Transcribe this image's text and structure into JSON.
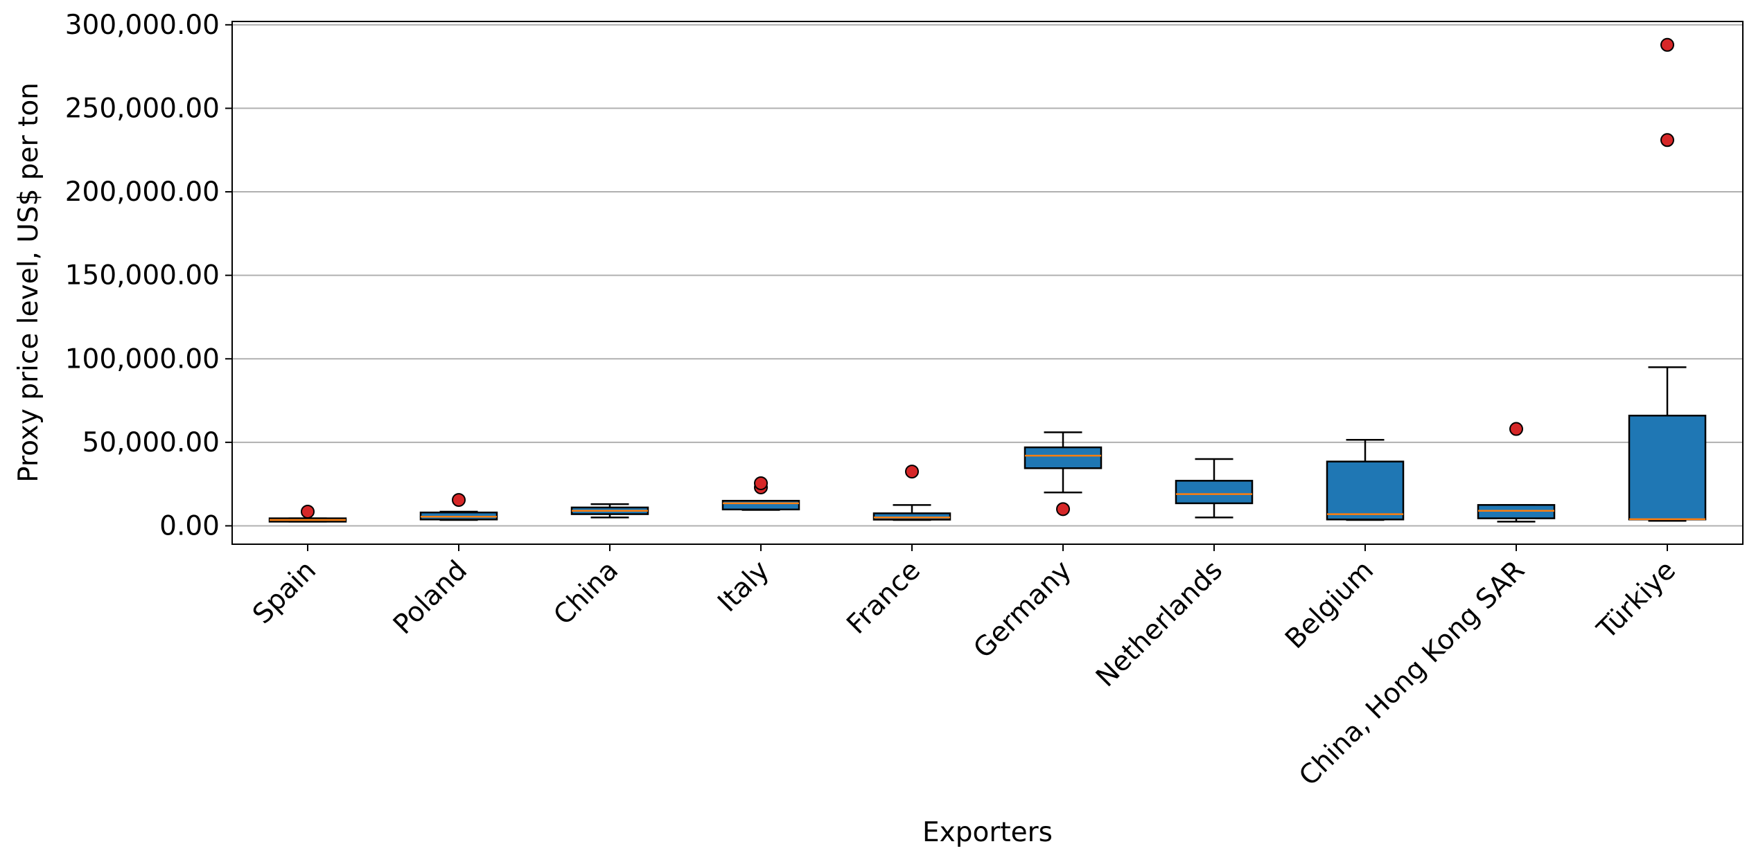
{
  "chart_data": {
    "type": "box",
    "xlabel": "Exporters",
    "ylabel": "Proxy price level, US$ per ton",
    "ylim": [
      -11000,
      302000
    ],
    "yticks": [
      0,
      50000,
      100000,
      150000,
      200000,
      250000,
      300000
    ],
    "ytick_labels": [
      "0.00",
      "50,000.00",
      "100,000.00",
      "150,000.00",
      "200,000.00",
      "250,000.00",
      "300,000.00"
    ],
    "grid": "y",
    "categories": [
      "Spain",
      "Poland",
      "China",
      "Italy",
      "France",
      "Germany",
      "Netherlands",
      "Belgium",
      "China, Hong Kong SAR",
      "Türkiye"
    ],
    "boxes": [
      {
        "whisker_low": 2500,
        "q1": 2500,
        "median": 3500,
        "q3": 4500,
        "whisker_high": 4500,
        "outliers": [
          8500
        ]
      },
      {
        "whisker_low": 3500,
        "q1": 3800,
        "median": 5500,
        "q3": 8000,
        "whisker_high": 8500,
        "outliers": [
          15500
        ]
      },
      {
        "whisker_low": 5000,
        "q1": 7000,
        "median": 9000,
        "q3": 11000,
        "whisker_high": 13000,
        "outliers": []
      },
      {
        "whisker_low": 9500,
        "q1": 9800,
        "median": 13500,
        "q3": 15000,
        "whisker_high": 15000,
        "outliers": [
          23000,
          25500
        ]
      },
      {
        "whisker_low": 3500,
        "q1": 3700,
        "median": 5000,
        "q3": 7500,
        "whisker_high": 12500,
        "outliers": [
          32500
        ]
      },
      {
        "whisker_low": 20000,
        "q1": 34500,
        "median": 42000,
        "q3": 47000,
        "whisker_high": 56000,
        "outliers": [
          10000
        ]
      },
      {
        "whisker_low": 5000,
        "q1": 13500,
        "median": 19000,
        "q3": 27000,
        "whisker_high": 40000,
        "outliers": []
      },
      {
        "whisker_low": 3500,
        "q1": 3800,
        "median": 7000,
        "q3": 38500,
        "whisker_high": 51500,
        "outliers": []
      },
      {
        "whisker_low": 2500,
        "q1": 4500,
        "median": 9000,
        "q3": 12500,
        "whisker_high": 12500,
        "outliers": [
          58000
        ]
      },
      {
        "whisker_low": 3000,
        "q1": 3800,
        "median": 4000,
        "q3": 66000,
        "whisker_high": 95000,
        "outliers": [
          231000,
          288000
        ]
      }
    ],
    "colors": {
      "box_fill": "#1f77b4",
      "box_edge": "#000000",
      "median": "#ff7f0e",
      "outlier_fill": "#d62728",
      "grid": "#b0b0b0"
    }
  }
}
